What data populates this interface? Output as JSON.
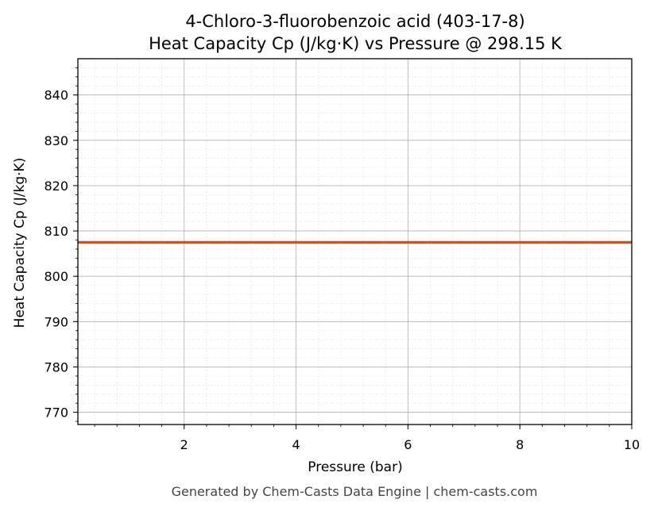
{
  "chart_data": {
    "type": "line",
    "title_line1": "4-Chloro-3-fluorobenzoic acid (403-17-8)",
    "title_line2": "Heat Capacity Cp (J/kg·K) vs Pressure @ 298.15 K",
    "xlabel": "Pressure (bar)",
    "ylabel": "Heat Capacity Cp (J/kg·K)",
    "xlim": [
      0.1,
      10
    ],
    "ylim": [
      767.3,
      848
    ],
    "x_ticks": [
      2,
      4,
      6,
      8,
      10
    ],
    "y_ticks": [
      770,
      780,
      790,
      800,
      810,
      820,
      830,
      840
    ],
    "grid": true,
    "series": [
      {
        "color": "#c8532a",
        "x": [
          0.1,
          10
        ],
        "y": [
          807.5,
          807.5
        ]
      }
    ]
  },
  "footer": "Generated by Chem-Casts Data Engine | chem-casts.com"
}
